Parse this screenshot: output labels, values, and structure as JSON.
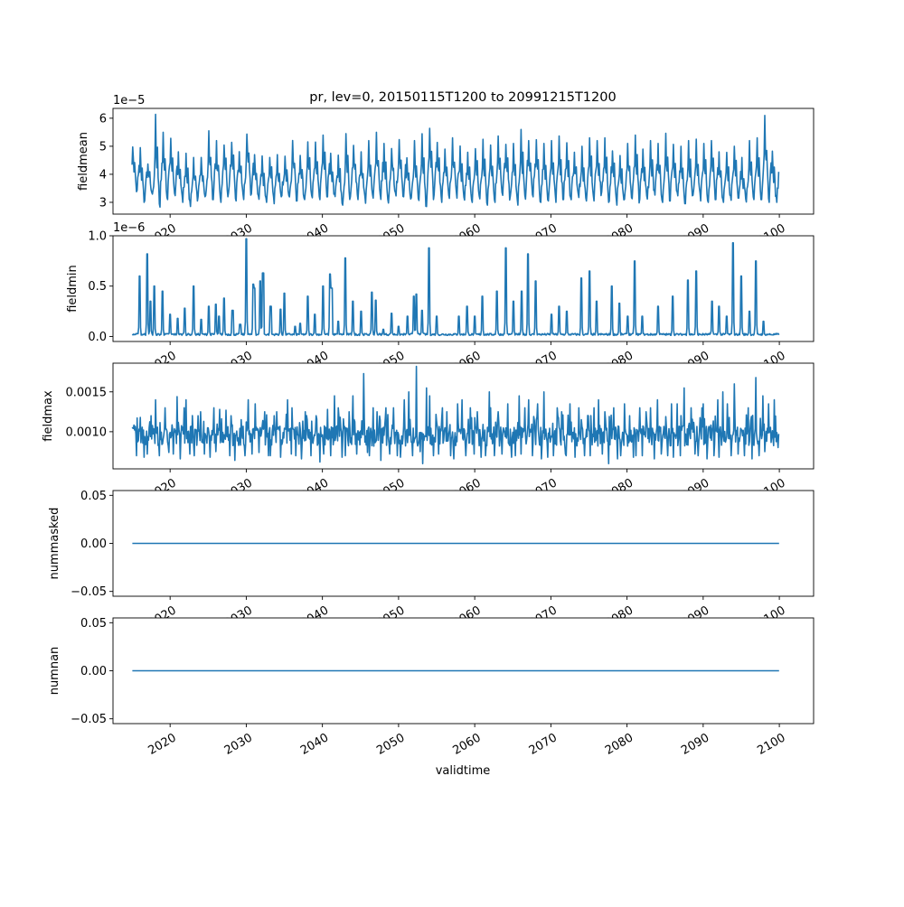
{
  "chart_data": {
    "type": "line",
    "title": "pr, lev=0, 20150115T1200 to 20991215T1200",
    "xlabel": "validtime",
    "xlim": [
      2012.5,
      2104.5
    ],
    "x_ticks": [
      2020,
      2030,
      2040,
      2050,
      2060,
      2070,
      2080,
      2090,
      2100
    ],
    "x_tick_labels": [
      "2020",
      "2030",
      "2040",
      "2050",
      "2060",
      "2070",
      "2080",
      "2090",
      "2100"
    ],
    "line_color": "#1f77b4",
    "panels": [
      {
        "name": "fieldmean",
        "ylabel": "fieldmean",
        "offset_text": "1e−5",
        "scale": 1e-05,
        "ylim": [
          2.58,
          6.35
        ],
        "y_ticks": [
          3,
          4,
          5,
          6
        ],
        "y_tick_labels": [
          "3",
          "4",
          "5",
          "6"
        ],
        "start_year": 2015,
        "annual_peaks": [
          5.15,
          4.95,
          4.5,
          6.2,
          5.5,
          5.4,
          4.8,
          4.8,
          4.6,
          4.6,
          5.55,
          5.2,
          5.2,
          5.3,
          4.9,
          5.5,
          4.7,
          4.7,
          4.75,
          4.7,
          4.75,
          5.3,
          4.75,
          5.3,
          5.2,
          5.4,
          4.75,
          4.7,
          5.45,
          5.2,
          4.8,
          5.2,
          5.5,
          5.1,
          5.05,
          5.4,
          4.6,
          5.2,
          5.6,
          5.8,
          5.3,
          4.9,
          5.3,
          5.1,
          4.8,
          5.0,
          5.35,
          5.2,
          5.5,
          5.2,
          5.1,
          5.6,
          5.2,
          5.3,
          5.1,
          5.2,
          5.4,
          5.25,
          4.9,
          5.0,
          5.3,
          5.2,
          5.3,
          5.0,
          4.8,
          5.1,
          5.4,
          4.9,
          5.2,
          5.1,
          5.5,
          5.2,
          5.0,
          5.2,
          5.3,
          5.1,
          5.2,
          4.8,
          4.9,
          5.0,
          4.6,
          5.2,
          5.3,
          6.1,
          4.9
        ],
        "annual_troughs": [
          3.35,
          3.0,
          3.15,
          2.75,
          3.1,
          3.2,
          3.0,
          2.85,
          3.05,
          3.2,
          3.1,
          3.0,
          3.2,
          3.05,
          3.1,
          3.25,
          3.1,
          3.0,
          2.95,
          3.2,
          3.1,
          3.05,
          3.1,
          3.0,
          3.05,
          3.2,
          3.1,
          2.9,
          3.05,
          3.1,
          2.95,
          3.15,
          3.05,
          2.85,
          3.1,
          3.2,
          3.0,
          3.05,
          2.85,
          3.1,
          3.0,
          3.05,
          3.15,
          2.95,
          3.0,
          3.1,
          2.9,
          3.0,
          3.15,
          3.05,
          2.9,
          3.05,
          3.2,
          3.0,
          3.05,
          3.0,
          3.1,
          2.95,
          3.1,
          3.0,
          3.05,
          3.2,
          3.0,
          2.9,
          3.05,
          3.1,
          2.95,
          3.05,
          3.2,
          3.0,
          3.05,
          3.1,
          2.95,
          3.1,
          3.05,
          3.0,
          3.1,
          3.0,
          3.05,
          3.15,
          2.9,
          3.05,
          3.1,
          3.0,
          3.0
        ],
        "seasonal_profile": [
          0.55,
          1.0,
          0.6,
          0.45,
          0.65,
          0.35,
          0.2,
          0.05,
          0.0,
          0.25,
          0.35,
          0.5
        ]
      },
      {
        "name": "fieldmin",
        "ylabel": "fieldmin",
        "offset_text": "1e−6",
        "scale": 1e-06,
        "ylim": [
          -0.05,
          1.0
        ],
        "y_ticks": [
          0.0,
          0.5,
          1.0
        ],
        "y_tick_labels": [
          "0.0",
          "0.5",
          "1.0"
        ],
        "baseline": 0.01,
        "spikes": [
          [
            2016.0,
            0.6
          ],
          [
            2017.0,
            0.82
          ],
          [
            2017.4,
            0.35
          ],
          [
            2017.9,
            0.5
          ],
          [
            2019.0,
            0.45
          ],
          [
            2020.0,
            0.22
          ],
          [
            2021.0,
            0.18
          ],
          [
            2021.9,
            0.28
          ],
          [
            2023.1,
            0.5
          ],
          [
            2024.1,
            0.17
          ],
          [
            2025.1,
            0.3
          ],
          [
            2026.0,
            0.32
          ],
          [
            2026.4,
            0.2
          ],
          [
            2027.1,
            0.38
          ],
          [
            2028.2,
            0.26
          ],
          [
            2029.2,
            0.12
          ],
          [
            2030.0,
            0.97
          ],
          [
            2030.9,
            0.52
          ],
          [
            2031.1,
            0.48
          ],
          [
            2031.8,
            0.55
          ],
          [
            2032.2,
            0.63
          ],
          [
            2033.2,
            0.3
          ],
          [
            2034.5,
            0.27
          ],
          [
            2035.0,
            0.43
          ],
          [
            2036.4,
            0.1
          ],
          [
            2037.1,
            0.13
          ],
          [
            2038.1,
            0.4
          ],
          [
            2039.0,
            0.22
          ],
          [
            2040.1,
            0.5
          ],
          [
            2041.0,
            0.62
          ],
          [
            2041.2,
            0.48
          ],
          [
            2042.1,
            0.15
          ],
          [
            2043.0,
            0.78
          ],
          [
            2044.0,
            0.35
          ],
          [
            2045.1,
            0.25
          ],
          [
            2046.5,
            0.44
          ],
          [
            2047.0,
            0.36
          ],
          [
            2048.0,
            0.07
          ],
          [
            2049.1,
            0.23
          ],
          [
            2050.0,
            0.1
          ],
          [
            2051.2,
            0.2
          ],
          [
            2052.0,
            0.4
          ],
          [
            2052.3,
            0.42
          ],
          [
            2053.1,
            0.26
          ],
          [
            2054.0,
            0.88
          ],
          [
            2055.0,
            0.2
          ],
          [
            2057.9,
            0.2
          ],
          [
            2059.0,
            0.3
          ],
          [
            2060.0,
            0.2
          ],
          [
            2061.0,
            0.4
          ],
          [
            2062.9,
            0.45
          ],
          [
            2064.1,
            0.88
          ],
          [
            2065.1,
            0.35
          ],
          [
            2066.2,
            0.45
          ],
          [
            2067.0,
            0.82
          ],
          [
            2068.0,
            0.55
          ],
          [
            2070.1,
            0.22
          ],
          [
            2071.1,
            0.3
          ],
          [
            2072.1,
            0.25
          ],
          [
            2074.0,
            0.58
          ],
          [
            2075.1,
            0.65
          ],
          [
            2076.0,
            0.35
          ],
          [
            2078.0,
            0.5
          ],
          [
            2079.0,
            0.33
          ],
          [
            2080.1,
            0.2
          ],
          [
            2081.0,
            0.75
          ],
          [
            2082.0,
            0.2
          ],
          [
            2084.1,
            0.3
          ],
          [
            2086.0,
            0.4
          ],
          [
            2088.0,
            0.56
          ],
          [
            2089.1,
            0.65
          ],
          [
            2091.2,
            0.35
          ],
          [
            2092.1,
            0.3
          ],
          [
            2093.1,
            0.2
          ],
          [
            2093.9,
            0.93
          ],
          [
            2095.0,
            0.6
          ],
          [
            2096.1,
            0.25
          ],
          [
            2096.9,
            0.75
          ],
          [
            2097.9,
            0.15
          ]
        ]
      },
      {
        "name": "fieldmax",
        "ylabel": "fieldmax",
        "offset_text": "",
        "scale": 1,
        "ylim": [
          0.000534,
          0.00186
        ],
        "y_ticks": [
          0.001,
          0.0015
        ],
        "y_tick_labels": [
          "0.0010",
          "0.0015"
        ],
        "start_year": 2015,
        "annual_highs": [
          1.05,
          1.18,
          1.2,
          1.4,
          1.3,
          1.44,
          1.3,
          1.4,
          1.2,
          1.25,
          1.3,
          1.28,
          1.27,
          1.2,
          1.15,
          1.4,
          1.35,
          1.25,
          1.2,
          1.25,
          1.4,
          1.3,
          1.25,
          1.15,
          1.2,
          1.28,
          1.45,
          1.3,
          1.25,
          1.45,
          1.73,
          1.3,
          1.25,
          1.3,
          1.3,
          1.4,
          1.5,
          1.82,
          1.55,
          1.45,
          1.3,
          1.25,
          1.35,
          1.4,
          1.3,
          1.25,
          1.5,
          1.3,
          1.25,
          1.35,
          1.45,
          1.3,
          1.4,
          1.35,
          1.5,
          1.3,
          1.25,
          1.35,
          1.3,
          1.2,
          1.3,
          1.4,
          1.25,
          1.3,
          1.35,
          1.2,
          1.3,
          1.25,
          1.3,
          1.4,
          1.35,
          1.35,
          1.55,
          1.3,
          1.3,
          1.35,
          1.4,
          1.5,
          1.35,
          1.6,
          1.3,
          1.68,
          1.45,
          1.35,
          1.4
        ],
        "annual_lows": [
          0.7,
          0.68,
          0.72,
          0.7,
          0.74,
          0.72,
          0.66,
          0.72,
          0.7,
          0.72,
          0.68,
          0.75,
          0.7,
          0.64,
          0.7,
          0.72,
          0.74,
          0.7,
          0.7,
          0.68,
          0.72,
          0.7,
          0.66,
          0.7,
          0.62,
          0.72,
          0.7,
          0.68,
          0.7,
          0.72,
          0.74,
          0.7,
          0.64,
          0.72,
          0.7,
          0.68,
          0.7,
          0.75,
          0.6,
          0.7,
          0.72,
          0.7,
          0.66,
          0.7,
          0.72,
          0.68,
          0.7,
          0.7,
          0.72,
          0.68,
          0.7,
          0.72,
          0.7,
          0.66,
          0.68,
          0.7,
          0.72,
          0.7,
          0.68,
          0.7,
          0.7,
          0.72,
          0.6,
          0.66,
          0.7,
          0.68,
          0.7,
          0.7,
          0.66,
          0.72,
          0.7,
          0.68,
          0.7,
          0.72,
          0.7,
          0.66,
          0.7,
          0.68,
          0.7,
          0.72,
          0.7,
          0.66,
          0.7,
          0.75,
          0.8
        ]
      },
      {
        "name": "nummasked",
        "ylabel": "nummasked",
        "offset_text": "",
        "scale": 1,
        "ylim": [
          -0.055,
          0.055
        ],
        "y_ticks": [
          -0.05,
          0.0,
          0.05
        ],
        "y_tick_labels": [
          "−0.05",
          "0.00",
          "0.05"
        ],
        "constant_value": 0.0
      },
      {
        "name": "numnan",
        "ylabel": "numnan",
        "offset_text": "",
        "scale": 1,
        "ylim": [
          -0.055,
          0.055
        ],
        "y_ticks": [
          -0.05,
          0.0,
          0.05
        ],
        "y_tick_labels": [
          "−0.05",
          "0.00",
          "0.05"
        ],
        "constant_value": 0.0
      }
    ],
    "data_range": [
      2015.04,
      2099.96
    ]
  }
}
